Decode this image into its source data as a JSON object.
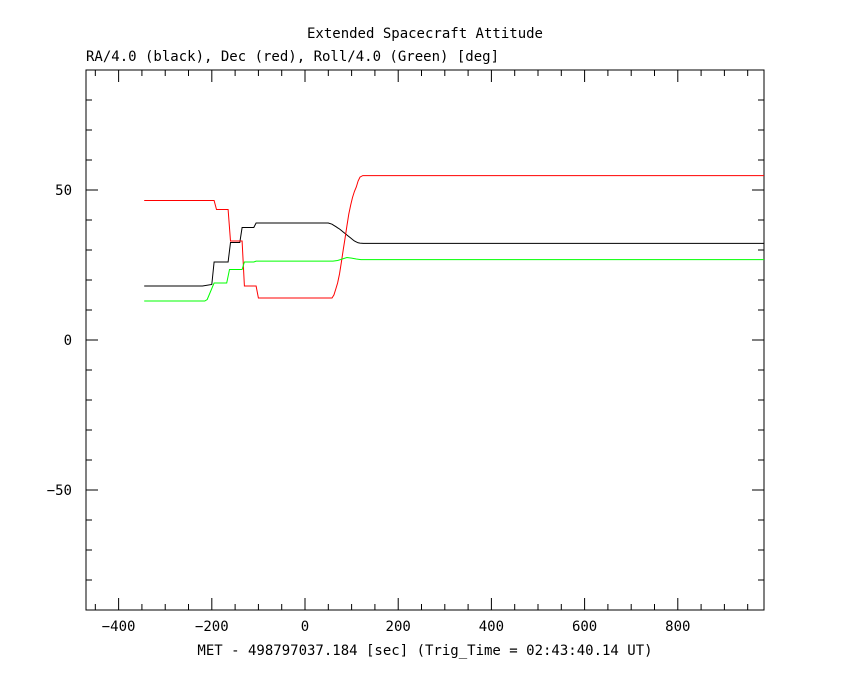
{
  "chart_data": {
    "type": "line",
    "title": "Extended Spacecraft Attitude",
    "subtitle": "RA/4.0 (black), Dec (red), Roll/4.0 (Green) [deg]",
    "xlabel": "MET - 498797037.184 [sec] (Trig_Time = 02:43:40.14 UT)",
    "ylabel": "",
    "xlim": [
      -470,
      985
    ],
    "ylim": [
      -90,
      90
    ],
    "xticks": [
      -400,
      -200,
      0,
      200,
      400,
      600,
      800
    ],
    "xtick_labels": [
      "−400",
      "−200",
      "0",
      "200",
      "400",
      "600",
      "800"
    ],
    "yticks": [
      -50,
      0,
      50
    ],
    "ytick_labels": [
      "−50",
      "0",
      "50"
    ],
    "x_minor_step": 50,
    "y_minor_step": 10,
    "grid": false,
    "series": [
      {
        "color": "#000000",
        "points": [
          [
            -345,
            18
          ],
          [
            -220,
            18
          ],
          [
            -200,
            18.5
          ],
          [
            -195,
            26
          ],
          [
            -165,
            26
          ],
          [
            -160,
            32.5
          ],
          [
            -140,
            32.5
          ],
          [
            -135,
            37.5
          ],
          [
            -110,
            37.5
          ],
          [
            -105,
            39
          ],
          [
            50,
            39
          ],
          [
            58,
            38.6
          ],
          [
            62,
            38.2
          ],
          [
            66,
            37.8
          ],
          [
            70,
            37.4
          ],
          [
            74,
            37
          ],
          [
            78,
            36.5
          ],
          [
            82,
            36
          ],
          [
            86,
            35.5
          ],
          [
            90,
            35
          ],
          [
            94,
            34.5
          ],
          [
            98,
            34
          ],
          [
            102,
            33.5
          ],
          [
            106,
            33
          ],
          [
            110,
            32.7
          ],
          [
            114,
            32.4
          ],
          [
            118,
            32.3
          ],
          [
            125,
            32.2
          ],
          [
            985,
            32.2
          ]
        ]
      },
      {
        "color": "#ff0000",
        "points": [
          [
            -345,
            46.5
          ],
          [
            -195,
            46.5
          ],
          [
            -190,
            43.5
          ],
          [
            -165,
            43.5
          ],
          [
            -160,
            33
          ],
          [
            -135,
            33
          ],
          [
            -130,
            18
          ],
          [
            -105,
            18
          ],
          [
            -100,
            14
          ],
          [
            58,
            14
          ],
          [
            62,
            15
          ],
          [
            66,
            17
          ],
          [
            70,
            19
          ],
          [
            74,
            22
          ],
          [
            78,
            26
          ],
          [
            82,
            30
          ],
          [
            86,
            34
          ],
          [
            90,
            38
          ],
          [
            94,
            42
          ],
          [
            98,
            45
          ],
          [
            102,
            47.5
          ],
          [
            106,
            49.5
          ],
          [
            110,
            51
          ],
          [
            114,
            53
          ],
          [
            118,
            54.3
          ],
          [
            124,
            54.8
          ],
          [
            985,
            54.8
          ]
        ]
      },
      {
        "color": "#00ff00",
        "points": [
          [
            -345,
            13
          ],
          [
            -215,
            13
          ],
          [
            -210,
            13.5
          ],
          [
            -195,
            19
          ],
          [
            -168,
            19
          ],
          [
            -162,
            23.5
          ],
          [
            -135,
            23.5
          ],
          [
            -130,
            26
          ],
          [
            -110,
            26
          ],
          [
            -105,
            26.3
          ],
          [
            60,
            26.3
          ],
          [
            70,
            26.5
          ],
          [
            80,
            27
          ],
          [
            90,
            27.5
          ],
          [
            100,
            27.3
          ],
          [
            110,
            27
          ],
          [
            120,
            26.8
          ],
          [
            985,
            26.8
          ]
        ]
      }
    ]
  }
}
